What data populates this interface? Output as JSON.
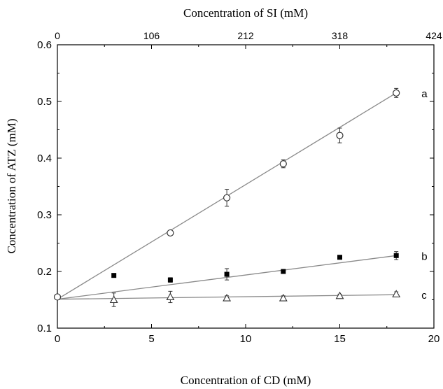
{
  "chart_data": {
    "type": "scatter",
    "title": "",
    "xlabel": "Concentration of CD (mM)",
    "x2label": "Concentration of SI (mM)",
    "ylabel": "Concentration of ATZ (mM)",
    "xlim": [
      0,
      20
    ],
    "x2lim": [
      0,
      424
    ],
    "ylim": [
      0.1,
      0.6
    ],
    "xticks": [
      0,
      5,
      10,
      15,
      20
    ],
    "xtick_labels": [
      "0",
      "5",
      "10",
      "15",
      "20"
    ],
    "x2ticks": [
      0,
      106,
      212,
      318,
      424
    ],
    "x2tick_labels": [
      "0",
      "106",
      "212",
      "318",
      "424"
    ],
    "yticks": [
      0.1,
      0.2,
      0.3,
      0.4,
      0.5,
      0.6
    ],
    "ytick_labels": [
      "0.1",
      "0.2",
      "0.3",
      "0.4",
      "0.5",
      "0.6"
    ],
    "grid": false,
    "legend": "none",
    "series": [
      {
        "label": "a",
        "marker": "open-circle",
        "x": [
          0,
          6,
          9,
          12,
          15,
          18
        ],
        "y": [
          0.155,
          0.268,
          0.33,
          0.39,
          0.44,
          0.515
        ],
        "err": [
          0.004,
          0.003,
          0.015,
          0.007,
          0.013,
          0.008
        ],
        "fit": {
          "x": [
            0,
            18
          ],
          "y": [
            0.151,
            0.515
          ]
        }
      },
      {
        "label": "b",
        "marker": "filled-square",
        "x": [
          3,
          6,
          9,
          12,
          15,
          18
        ],
        "y": [
          0.193,
          0.185,
          0.195,
          0.2,
          0.225,
          0.228
        ],
        "err": [
          0.003,
          0.004,
          0.01,
          0.003,
          0.003,
          0.007
        ],
        "fit": {
          "x": [
            0,
            18
          ],
          "y": [
            0.151,
            0.228
          ]
        }
      },
      {
        "label": "c",
        "marker": "open-triangle",
        "x": [
          3,
          6,
          9,
          12,
          15,
          18
        ],
        "y": [
          0.15,
          0.155,
          0.153,
          0.153,
          0.157,
          0.16
        ],
        "err": [
          0.012,
          0.01,
          0.004,
          0.004,
          0.003,
          0.004
        ],
        "fit": {
          "x": [
            0,
            18
          ],
          "y": [
            0.151,
            0.159
          ]
        }
      }
    ],
    "colors": {
      "line": "#8a8a8a",
      "marker": "#333333",
      "axis": "#000000"
    }
  }
}
